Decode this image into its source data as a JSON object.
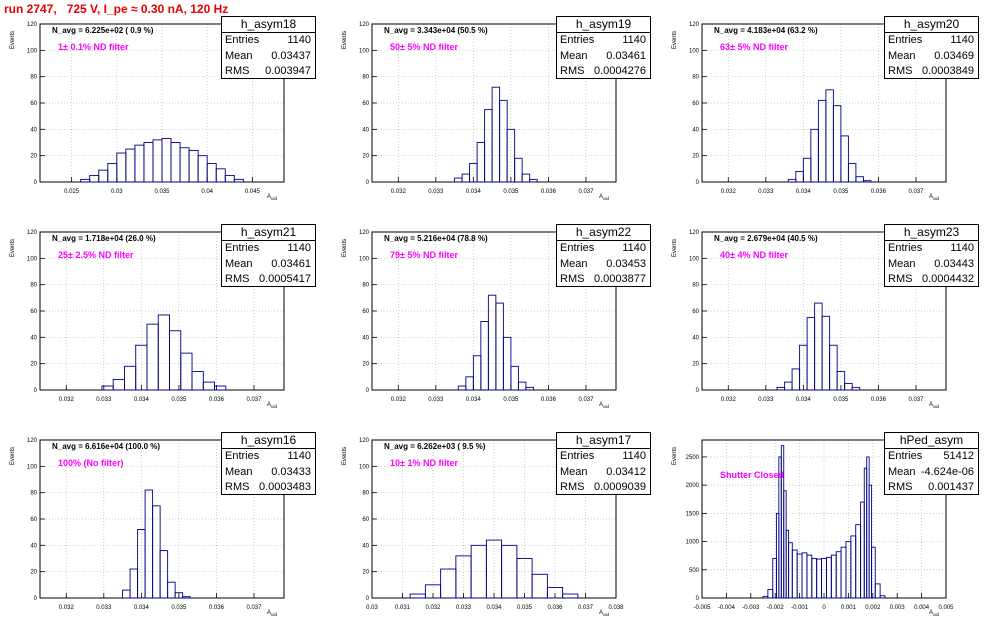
{
  "title": "run 2747,   725 V, I_pe ≈ 0.30 nA, 120 Hz",
  "colors": {
    "title": "#e60000",
    "filter_label": "#ff00ff",
    "histogram_line": "#000080",
    "grid": "#bbbbbb"
  },
  "chart_data": [
    {
      "type": "histogram",
      "name": "h_asym18",
      "navg": "N_avg = 6.225e+02 ( 0.9 %)",
      "filter": "1± 0.1% ND filter",
      "ylabel": "Events",
      "xlabel": "A_uid",
      "grid": true,
      "xlim": [
        0.0215,
        0.0485
      ],
      "ylim": [
        0,
        120
      ],
      "xticks": [
        0.025,
        0.03,
        0.035,
        0.04,
        0.045
      ],
      "xtick_labels": [
        "0.025",
        "0.03",
        "0.035",
        "0.04",
        "0.045"
      ],
      "yticks": [
        0,
        20,
        40,
        60,
        80,
        100,
        120
      ],
      "ytick_labels": [
        "0",
        "20",
        "40",
        "60",
        "80",
        "100",
        "120"
      ],
      "stats": {
        "entries": "1140",
        "mean": "0.03437",
        "rms": "0.003947"
      },
      "x": [
        0.0265,
        0.0275,
        0.0285,
        0.0295,
        0.0305,
        0.0315,
        0.0325,
        0.0335,
        0.0345,
        0.0355,
        0.0365,
        0.0375,
        0.0385,
        0.0395,
        0.0405,
        0.0415,
        0.0425,
        0.0435
      ],
      "values": [
        2,
        5,
        9,
        14,
        22,
        25,
        28,
        30,
        32,
        33,
        30,
        26,
        24,
        20,
        14,
        10,
        5,
        2
      ]
    },
    {
      "type": "histogram",
      "name": "h_asym19",
      "navg": "N_avg = 3.343e+04 (50.5 %)",
      "filter": "50± 5% ND filter",
      "ylabel": "Events",
      "xlabel": "A_uid",
      "grid": true,
      "xlim": [
        0.0313,
        0.0378
      ],
      "ylim": [
        0,
        120
      ],
      "xticks": [
        0.032,
        0.033,
        0.034,
        0.035,
        0.036,
        0.037
      ],
      "xtick_labels": [
        "0.032",
        "0.033",
        "0.034",
        "0.035",
        "0.036",
        "0.037"
      ],
      "yticks": [
        0,
        20,
        40,
        60,
        80,
        100,
        120
      ],
      "ytick_labels": [
        "0",
        "20",
        "40",
        "60",
        "80",
        "100",
        "120"
      ],
      "stats": {
        "entries": "1140",
        "mean": "0.03461",
        "rms": "0.0004276"
      },
      "x": [
        0.0336,
        0.0338,
        0.034,
        0.0342,
        0.0344,
        0.0346,
        0.0348,
        0.035,
        0.0352,
        0.0354,
        0.0356
      ],
      "values": [
        3,
        6,
        14,
        30,
        55,
        72,
        62,
        40,
        18,
        6,
        2
      ]
    },
    {
      "type": "histogram",
      "name": "h_asym20",
      "navg": "N_avg = 4.183e+04 (63.2 %)",
      "filter": "63± 5% ND filter",
      "ylabel": "Events",
      "xlabel": "A_uid",
      "grid": true,
      "xlim": [
        0.0313,
        0.0378
      ],
      "ylim": [
        0,
        120
      ],
      "xticks": [
        0.032,
        0.033,
        0.034,
        0.035,
        0.036,
        0.037
      ],
      "xtick_labels": [
        "0.032",
        "0.033",
        "0.034",
        "0.035",
        "0.036",
        "0.037"
      ],
      "yticks": [
        0,
        20,
        40,
        60,
        80,
        100,
        120
      ],
      "ytick_labels": [
        "0",
        "20",
        "40",
        "60",
        "80",
        "100",
        "120"
      ],
      "stats": {
        "entries": "1140",
        "mean": "0.03469",
        "rms": "0.0003849"
      },
      "x": [
        0.0337,
        0.0339,
        0.0341,
        0.0343,
        0.0345,
        0.0347,
        0.0349,
        0.0351,
        0.0353,
        0.0355,
        0.0357
      ],
      "values": [
        2,
        8,
        18,
        40,
        62,
        70,
        58,
        35,
        14,
        4,
        1
      ]
    },
    {
      "type": "histogram",
      "name": "h_asym21",
      "navg": "N_avg = 1.718e+04 (26.0 %)",
      "filter": "25± 2.5% ND filter",
      "ylabel": "Events",
      "xlabel": "A_uid",
      "grid": true,
      "xlim": [
        0.0313,
        0.0378
      ],
      "ylim": [
        0,
        120
      ],
      "xticks": [
        0.032,
        0.033,
        0.034,
        0.035,
        0.036,
        0.037
      ],
      "xtick_labels": [
        "0.032",
        "0.033",
        "0.034",
        "0.035",
        "0.036",
        "0.037"
      ],
      "yticks": [
        0,
        20,
        40,
        60,
        80,
        100,
        120
      ],
      "ytick_labels": [
        "0",
        "20",
        "40",
        "60",
        "80",
        "100",
        "120"
      ],
      "stats": {
        "entries": "1140",
        "mean": "0.03461",
        "rms": "0.0005417"
      },
      "x": [
        0.0331,
        0.0334,
        0.0337,
        0.034,
        0.0343,
        0.0346,
        0.0349,
        0.0352,
        0.0355,
        0.0358,
        0.0361
      ],
      "values": [
        3,
        8,
        18,
        34,
        50,
        57,
        45,
        28,
        14,
        6,
        3
      ]
    },
    {
      "type": "histogram",
      "name": "h_asym22",
      "navg": "N_avg = 5.216e+04 (78.8 %)",
      "filter": "79± 5% ND filter",
      "ylabel": "Events",
      "xlabel": "A_uid",
      "grid": true,
      "xlim": [
        0.0313,
        0.0378
      ],
      "ylim": [
        0,
        120
      ],
      "xticks": [
        0.032,
        0.033,
        0.034,
        0.035,
        0.036,
        0.037
      ],
      "xtick_labels": [
        "0.032",
        "0.033",
        "0.034",
        "0.035",
        "0.036",
        "0.037"
      ],
      "yticks": [
        0,
        20,
        40,
        60,
        80,
        100,
        120
      ],
      "ytick_labels": [
        "0",
        "20",
        "40",
        "60",
        "80",
        "100",
        "120"
      ],
      "stats": {
        "entries": "1140",
        "mean": "0.03453",
        "rms": "0.0003877"
      },
      "x": [
        0.0337,
        0.0339,
        0.0341,
        0.0343,
        0.0345,
        0.0347,
        0.0349,
        0.0351,
        0.0353,
        0.0355
      ],
      "values": [
        3,
        10,
        26,
        52,
        72,
        66,
        40,
        18,
        6,
        2
      ]
    },
    {
      "type": "histogram",
      "name": "h_asym23",
      "navg": "N_avg = 2.679e+04 (40.5 %)",
      "filter": "40± 4% ND filter",
      "ylabel": "Events",
      "xlabel": "A_uid",
      "grid": true,
      "xlim": [
        0.0313,
        0.0378
      ],
      "ylim": [
        0,
        120
      ],
      "xticks": [
        0.032,
        0.033,
        0.034,
        0.035,
        0.036,
        0.037
      ],
      "xtick_labels": [
        "0.032",
        "0.033",
        "0.034",
        "0.035",
        "0.036",
        "0.037"
      ],
      "yticks": [
        0,
        20,
        40,
        60,
        80,
        100,
        120
      ],
      "ytick_labels": [
        "0",
        "20",
        "40",
        "60",
        "80",
        "100",
        "120"
      ],
      "stats": {
        "entries": "1140",
        "mean": "0.03443",
        "rms": "0.0004432"
      },
      "x": [
        0.0334,
        0.0336,
        0.0338,
        0.034,
        0.0342,
        0.0344,
        0.0346,
        0.0348,
        0.035,
        0.0352,
        0.0354
      ],
      "values": [
        2,
        6,
        16,
        34,
        55,
        66,
        56,
        34,
        14,
        5,
        2
      ]
    },
    {
      "type": "histogram",
      "name": "h_asym16",
      "navg": "N_avg = 6.616e+04 (100.0 %)",
      "filter": "100% (No filter)",
      "ylabel": "Events",
      "xlabel": "A_uid",
      "grid": true,
      "xlim": [
        0.0313,
        0.0378
      ],
      "ylim": [
        0,
        120
      ],
      "xticks": [
        0.032,
        0.033,
        0.034,
        0.035,
        0.036,
        0.037
      ],
      "xtick_labels": [
        "0.032",
        "0.033",
        "0.034",
        "0.035",
        "0.036",
        "0.037"
      ],
      "yticks": [
        0,
        20,
        40,
        60,
        80,
        100,
        120
      ],
      "ytick_labels": [
        "0",
        "20",
        "40",
        "60",
        "80",
        "100",
        "120"
      ],
      "stats": {
        "entries": "1140",
        "mean": "0.03433",
        "rms": "0.0003483"
      },
      "x": [
        0.0336,
        0.0338,
        0.034,
        0.0342,
        0.0344,
        0.0346,
        0.0348,
        0.035,
        0.0352
      ],
      "values": [
        6,
        22,
        52,
        82,
        70,
        36,
        12,
        4,
        1
      ]
    },
    {
      "type": "histogram",
      "name": "h_asym17",
      "navg": "N_avg = 6.262e+03 ( 9.5 %)",
      "filter": "10± 1% ND filter",
      "ylabel": "Events",
      "xlabel": "A_uid",
      "grid": true,
      "xlim": [
        0.03,
        0.038
      ],
      "ylim": [
        0,
        120
      ],
      "xticks": [
        0.03,
        0.031,
        0.032,
        0.033,
        0.034,
        0.035,
        0.036,
        0.037,
        0.038
      ],
      "xtick_labels": [
        "0.03",
        "0.031",
        "0.032",
        "0.033",
        "0.034",
        "0.035",
        "0.036",
        "0.037",
        "0.038"
      ],
      "yticks": [
        0,
        20,
        40,
        60,
        80,
        100,
        120
      ],
      "ytick_labels": [
        "0",
        "20",
        "40",
        "60",
        "80",
        "100",
        "120"
      ],
      "stats": {
        "entries": "1140",
        "mean": "0.03412",
        "rms": "0.0009039"
      },
      "x": [
        0.0315,
        0.032,
        0.0325,
        0.033,
        0.0335,
        0.034,
        0.0345,
        0.035,
        0.0355,
        0.036,
        0.0365
      ],
      "values": [
        3,
        10,
        22,
        32,
        40,
        44,
        40,
        30,
        18,
        8,
        3
      ]
    },
    {
      "type": "histogram",
      "name": "hPed_asym",
      "filter": "Shutter Closed",
      "ylabel": "Events",
      "xlabel": "A_uid",
      "grid": true,
      "xlim": [
        -0.005,
        0.005
      ],
      "ylim": [
        0,
        2800
      ],
      "xticks": [
        -0.005,
        -0.004,
        -0.003,
        -0.002,
        -0.001,
        0,
        0.001,
        0.002,
        0.003,
        0.004,
        0.005
      ],
      "xtick_labels": [
        "-0.005",
        "-0.004",
        "-0.003",
        "-0.002",
        "-0.001",
        "0",
        "0.001",
        "0.002",
        "0.003",
        "0.004",
        "0.005"
      ],
      "yticks": [
        0,
        500,
        1000,
        1500,
        2000,
        2500
      ],
      "ytick_labels": [
        "0",
        "500",
        "1000",
        "1500",
        "2000",
        "2500"
      ],
      "stats": {
        "entries": "51412",
        "mean": "-4.624e-06",
        "rms": "0.001437"
      },
      "x": [
        -0.0024,
        -0.0022,
        -0.002,
        -0.0019,
        -0.0018,
        -0.0017,
        -0.0016,
        -0.0015,
        -0.0014,
        -0.0012,
        -0.001,
        -0.0008,
        -0.0006,
        -0.0004,
        -0.0002,
        0,
        0.0002,
        0.0004,
        0.0006,
        0.0008,
        0.001,
        0.0012,
        0.0014,
        0.0016,
        0.0017,
        0.0018,
        0.0019,
        0.002,
        0.0022,
        0.0024
      ],
      "values": [
        30,
        150,
        700,
        1500,
        2500,
        2700,
        1900,
        1200,
        980,
        850,
        780,
        800,
        760,
        700,
        690,
        700,
        720,
        760,
        820,
        900,
        1000,
        1100,
        1300,
        1700,
        2300,
        2500,
        2000,
        900,
        250,
        40
      ]
    }
  ]
}
